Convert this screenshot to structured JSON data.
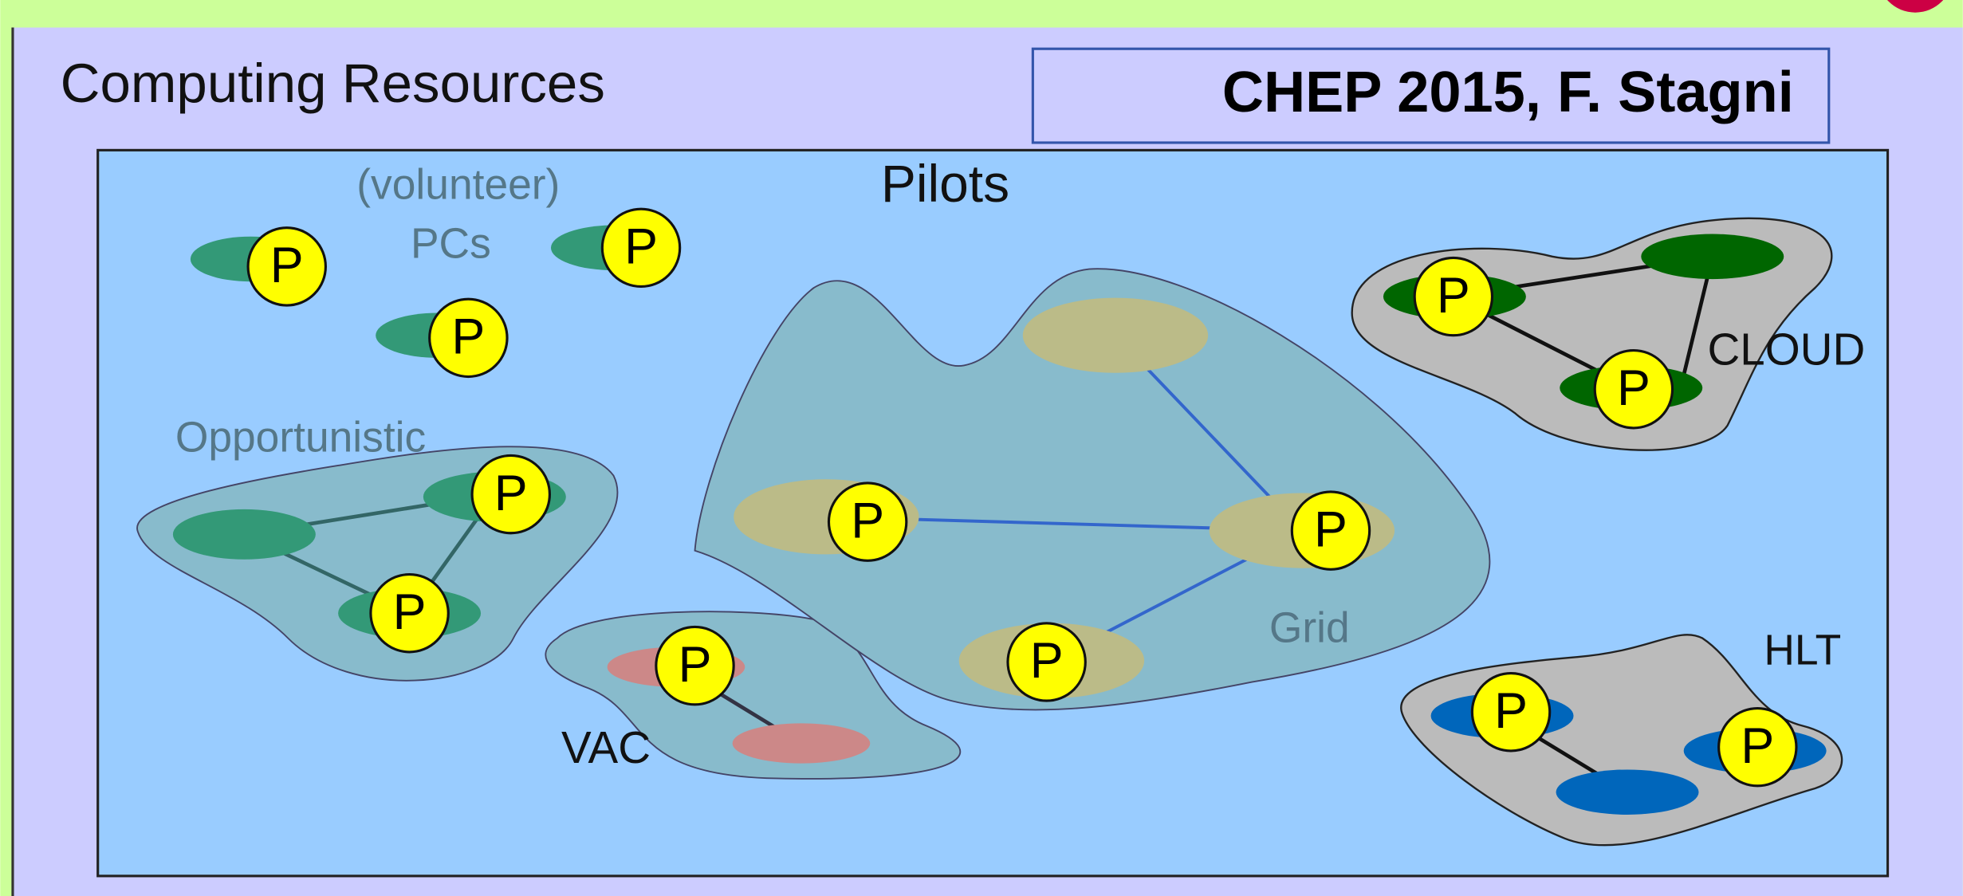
{
  "header": {
    "title": "Computing Resources",
    "credit": "CHEP 2015, F. Stagni"
  },
  "diagram": {
    "title": "Pilots",
    "groups": [
      {
        "label_lines": [
          "(volunteer)",
          "PCs"
        ],
        "pilots": [
          "P",
          "P",
          "P"
        ]
      },
      {
        "label_lines": [
          "Opportunistic"
        ],
        "pilots": [
          "P",
          "P"
        ]
      },
      {
        "label_lines": [
          "VAC"
        ],
        "pilots": [
          "P"
        ]
      },
      {
        "label_lines": [
          "Grid"
        ],
        "pilots": [
          "P",
          "P",
          "P"
        ]
      },
      {
        "label_lines": [
          "CLOUD"
        ],
        "pilots": [
          "P",
          "P"
        ]
      },
      {
        "label_lines": [
          "HLT"
        ],
        "pilots": [
          "P",
          "P"
        ]
      }
    ]
  }
}
